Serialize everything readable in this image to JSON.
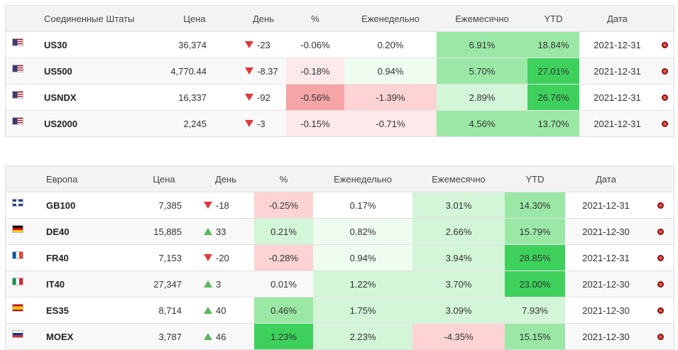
{
  "tables": [
    {
      "header": [
        "Соединенные Штаты",
        "Цена",
        "День",
        "%",
        "Еженедельно",
        "Ежемесячно",
        "YTD",
        "Дата"
      ],
      "rows": [
        [
          "US30",
          "36,374",
          "-23",
          "-0.06%",
          "0.20%",
          "6.91%",
          "18.84%",
          "2021-12-31"
        ],
        [
          "US500",
          "4,770.44",
          "-8.37",
          "-0.18%",
          "0.94%",
          "5.70%",
          "27.01%",
          "2021-12-31"
        ],
        [
          "USNDX",
          "16,337",
          "-92",
          "-0.56%",
          "-1.39%",
          "2.89%",
          "26.76%",
          "2021-12-31"
        ],
        [
          "US2000",
          "2,245",
          "-3",
          "-0.15%",
          "-0.71%",
          "4.56%",
          "13.70%",
          "2021-12-31"
        ]
      ]
    },
    {
      "header": [
        "Европа",
        "Цена",
        "День",
        "%",
        "Еженедельно",
        "Ежемесячно",
        "YTD",
        "Дата"
      ],
      "rows": [
        [
          "GB100",
          "7,385",
          "-18",
          "-0.25%",
          "0.17%",
          "3.01%",
          "14.30%",
          "2021-12-31"
        ],
        [
          "DE40",
          "15,885",
          "33",
          "0.21%",
          "0.82%",
          "2.66%",
          "15.79%",
          "2021-12-30"
        ],
        [
          "FR40",
          "7,153",
          "-20",
          "-0.28%",
          "0.94%",
          "3.94%",
          "28.85%",
          "2021-12-31"
        ],
        [
          "IT40",
          "27,347",
          "3",
          "0.01%",
          "1.22%",
          "3.70%",
          "23.00%",
          "2021-12-30"
        ],
        [
          "ES35",
          "8,714",
          "40",
          "0.46%",
          "1.75%",
          "3.09%",
          "7.93%",
          "2021-12-30"
        ],
        [
          "MOEX",
          "3,787",
          "46",
          "1.23%",
          "2.23%",
          "-4.35%",
          "15.15%",
          "2021-12-30"
        ]
      ]
    }
  ]
}
